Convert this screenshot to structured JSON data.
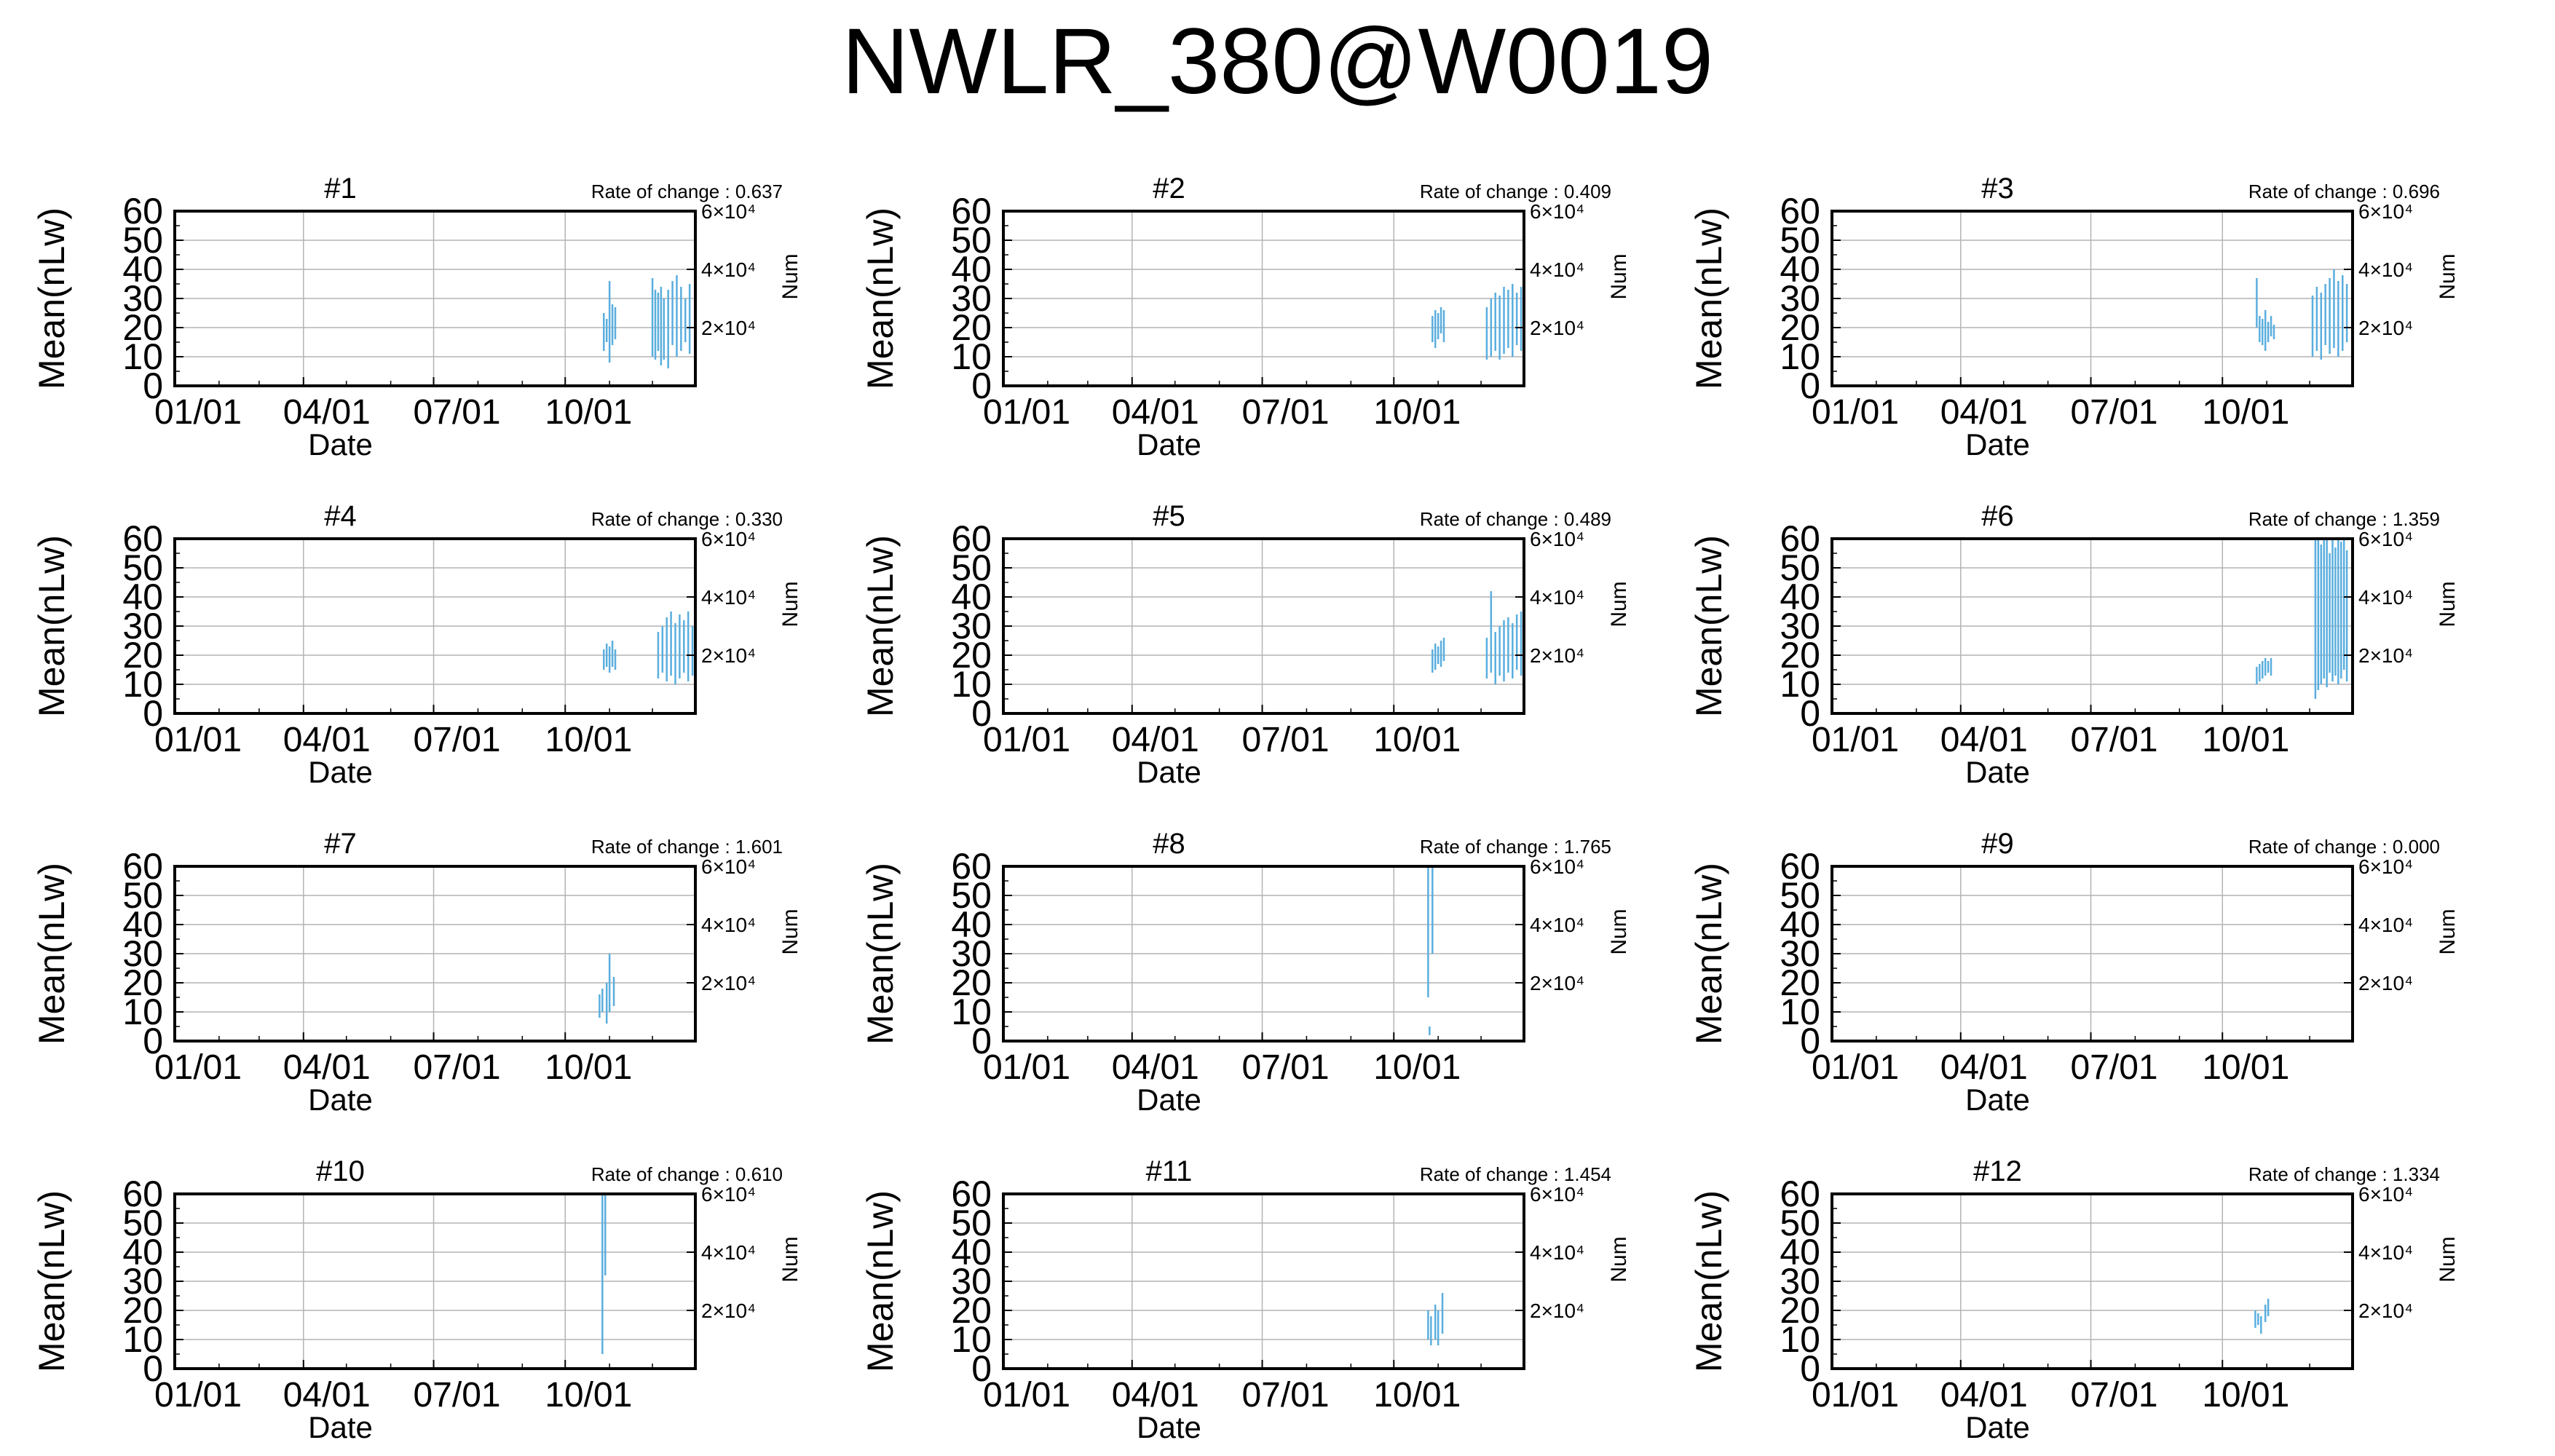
{
  "title": "NWLR_380@W0019",
  "colors": {
    "series": "#5aaede",
    "axis": "#000000",
    "grid": "#b4b4b4",
    "background": "#ffffff"
  },
  "chart_data": [
    {
      "type": "line",
      "title": "#1",
      "annotation": "Rate of change : 0.637",
      "xlabel": "Date",
      "ylabel": "Mean(nLw)",
      "y2label": "Num",
      "xticks": [
        "01/01",
        "04/01",
        "07/01",
        "10/01"
      ],
      "yticks": [
        "0",
        "10",
        "20",
        "30",
        "40",
        "50",
        "60"
      ],
      "y2ticks": [
        "2×10⁴",
        "4×10⁴",
        "6×10⁴"
      ],
      "xlim": [
        "01/01",
        "12/31"
      ],
      "ylim": [
        0,
        60
      ],
      "y2lim": [
        0,
        60000
      ],
      "grid": true,
      "series": [
        {
          "mean_range": [
            [
              "10/28",
              12,
              25
            ],
            [
              "10/30",
              15,
              23
            ],
            [
              "11/01",
              8,
              36
            ],
            [
              "11/03",
              14,
              28
            ],
            [
              "11/05",
              16,
              27
            ],
            [
              "12/01",
              10,
              37
            ],
            [
              "12/03",
              9,
              33
            ],
            [
              "12/05",
              12,
              32
            ],
            [
              "12/07",
              7,
              34
            ],
            [
              "12/09",
              9,
              30
            ],
            [
              "12/12",
              6,
              33
            ],
            [
              "12/15",
              14,
              36
            ],
            [
              "12/18",
              10,
              38
            ],
            [
              "12/21",
              12,
              34
            ],
            [
              "12/24",
              15,
              30
            ],
            [
              "12/27",
              11,
              35
            ]
          ]
        }
      ]
    },
    {
      "type": "line",
      "title": "#2",
      "annotation": "Rate of change : 0.409",
      "xlabel": "Date",
      "ylabel": "Mean(nLw)",
      "y2label": "Num",
      "xticks": [
        "01/01",
        "04/01",
        "07/01",
        "10/01"
      ],
      "yticks": [
        "0",
        "10",
        "20",
        "30",
        "40",
        "50",
        "60"
      ],
      "y2ticks": [
        "2×10⁴",
        "4×10⁴",
        "6×10⁴"
      ],
      "xlim": [
        "01/01",
        "12/31"
      ],
      "ylim": [
        0,
        60
      ],
      "y2lim": [
        0,
        60000
      ],
      "grid": true,
      "series": [
        {
          "mean_range": [
            [
              "10/28",
              15,
              24
            ],
            [
              "10/30",
              13,
              26
            ],
            [
              "11/01",
              16,
              25
            ],
            [
              "11/03",
              18,
              27
            ],
            [
              "11/05",
              15,
              26
            ],
            [
              "12/05",
              9,
              27
            ],
            [
              "12/08",
              10,
              30
            ],
            [
              "12/11",
              12,
              32
            ],
            [
              "12/14",
              9,
              31
            ],
            [
              "12/17",
              11,
              34
            ],
            [
              "12/20",
              13,
              33
            ],
            [
              "12/23",
              10,
              35
            ],
            [
              "12/26",
              14,
              32
            ],
            [
              "12/29",
              12,
              34
            ]
          ]
        }
      ]
    },
    {
      "type": "line",
      "title": "#3",
      "annotation": "Rate of change : 0.696",
      "xlabel": "Date",
      "ylabel": "Mean(nLw)",
      "y2label": "Num",
      "xticks": [
        "01/01",
        "04/01",
        "07/01",
        "10/01"
      ],
      "yticks": [
        "0",
        "10",
        "20",
        "30",
        "40",
        "50",
        "60"
      ],
      "y2ticks": [
        "2×10⁴",
        "4×10⁴",
        "6×10⁴"
      ],
      "xlim": [
        "01/01",
        "12/31"
      ],
      "ylim": [
        0,
        60
      ],
      "y2lim": [
        0,
        60000
      ],
      "grid": true,
      "series": [
        {
          "mean_range": [
            [
              "10/25",
              20,
              37
            ],
            [
              "10/27",
              15,
              24
            ],
            [
              "10/29",
              14,
              23
            ],
            [
              "10/31",
              12,
              26
            ],
            [
              "11/02",
              15,
              22
            ],
            [
              "11/04",
              17,
              24
            ],
            [
              "11/06",
              16,
              21
            ],
            [
              "12/03",
              10,
              31
            ],
            [
              "12/06",
              12,
              34
            ],
            [
              "12/09",
              9,
              32
            ],
            [
              "12/12",
              14,
              35
            ],
            [
              "12/15",
              11,
              37
            ],
            [
              "12/18",
              13,
              40
            ],
            [
              "12/21",
              10,
              36
            ],
            [
              "12/24",
              12,
              38
            ],
            [
              "12/27",
              15,
              35
            ]
          ]
        }
      ]
    },
    {
      "type": "line",
      "title": "#4",
      "annotation": "Rate of change : 0.330",
      "xlabel": "Date",
      "ylabel": "Mean(nLw)",
      "y2label": "Num",
      "xticks": [
        "01/01",
        "04/01",
        "07/01",
        "10/01"
      ],
      "yticks": [
        "0",
        "10",
        "20",
        "30",
        "40",
        "50",
        "60"
      ],
      "y2ticks": [
        "2×10⁴",
        "4×10⁴",
        "6×10⁴"
      ],
      "xlim": [
        "01/01",
        "12/31"
      ],
      "ylim": [
        0,
        60
      ],
      "y2lim": [
        0,
        60000
      ],
      "grid": true,
      "series": [
        {
          "mean_range": [
            [
              "10/28",
              15,
              22
            ],
            [
              "10/30",
              16,
              24
            ],
            [
              "11/01",
              14,
              23
            ],
            [
              "11/03",
              16,
              25
            ],
            [
              "11/05",
              15,
              22
            ],
            [
              "12/05",
              12,
              28
            ],
            [
              "12/08",
              14,
              30
            ],
            [
              "12/11",
              11,
              33
            ],
            [
              "12/14",
              13,
              35
            ],
            [
              "12/17",
              10,
              31
            ],
            [
              "12/20",
              12,
              34
            ],
            [
              "12/23",
              14,
              32
            ],
            [
              "12/26",
              11,
              35
            ],
            [
              "12/29",
              13,
              30
            ]
          ]
        }
      ]
    },
    {
      "type": "line",
      "title": "#5",
      "annotation": "Rate of change : 0.489",
      "xlabel": "Date",
      "ylabel": "Mean(nLw)",
      "y2label": "Num",
      "xticks": [
        "01/01",
        "04/01",
        "07/01",
        "10/01"
      ],
      "yticks": [
        "0",
        "10",
        "20",
        "30",
        "40",
        "50",
        "60"
      ],
      "y2ticks": [
        "2×10⁴",
        "4×10⁴",
        "6×10⁴"
      ],
      "xlim": [
        "01/01",
        "12/31"
      ],
      "ylim": [
        0,
        60
      ],
      "y2lim": [
        0,
        60000
      ],
      "grid": true,
      "series": [
        {
          "mean_range": [
            [
              "10/28",
              14,
              22
            ],
            [
              "10/30",
              15,
              24
            ],
            [
              "11/01",
              17,
              23
            ],
            [
              "11/03",
              16,
              25
            ],
            [
              "11/05",
              18,
              26
            ],
            [
              "12/05",
              12,
              26
            ],
            [
              "12/08",
              14,
              42
            ],
            [
              "12/11",
              10,
              28
            ],
            [
              "12/14",
              13,
              30
            ],
            [
              "12/17",
              11,
              32
            ],
            [
              "12/20",
              14,
              33
            ],
            [
              "12/23",
              12,
              31
            ],
            [
              "12/26",
              15,
              34
            ],
            [
              "12/29",
              13,
              35
            ]
          ]
        }
      ]
    },
    {
      "type": "line",
      "title": "#6",
      "annotation": "Rate of change : 1.359",
      "xlabel": "Date",
      "ylabel": "Mean(nLw)",
      "y2label": "Num",
      "xticks": [
        "01/01",
        "04/01",
        "07/01",
        "10/01"
      ],
      "yticks": [
        "0",
        "10",
        "20",
        "30",
        "40",
        "50",
        "60"
      ],
      "y2ticks": [
        "2×10⁴",
        "4×10⁴",
        "6×10⁴"
      ],
      "xlim": [
        "01/01",
        "12/31"
      ],
      "ylim": [
        0,
        60
      ],
      "y2lim": [
        0,
        60000
      ],
      "grid": true,
      "series": [
        {
          "mean_range": [
            [
              "10/25",
              10,
              16
            ],
            [
              "10/27",
              11,
              17
            ],
            [
              "10/29",
              12,
              18
            ],
            [
              "10/31",
              13,
              19
            ],
            [
              "11/02",
              14,
              18
            ],
            [
              "11/04",
              13,
              19
            ],
            [
              "12/05",
              5,
              60
            ],
            [
              "12/07",
              8,
              60
            ],
            [
              "12/09",
              10,
              58
            ],
            [
              "12/11",
              12,
              60
            ],
            [
              "12/13",
              9,
              60
            ],
            [
              "12/15",
              14,
              55
            ],
            [
              "12/17",
              11,
              60
            ],
            [
              "12/19",
              13,
              57
            ],
            [
              "12/21",
              10,
              60
            ],
            [
              "12/23",
              12,
              59
            ],
            [
              "12/25",
              15,
              60
            ],
            [
              "12/27",
              11,
              56
            ]
          ]
        }
      ]
    },
    {
      "type": "line",
      "title": "#7",
      "annotation": "Rate of change : 1.601",
      "xlabel": "Date",
      "ylabel": "Mean(nLw)",
      "y2label": "Num",
      "xticks": [
        "01/01",
        "04/01",
        "07/01",
        "10/01"
      ],
      "yticks": [
        "0",
        "10",
        "20",
        "30",
        "40",
        "50",
        "60"
      ],
      "y2ticks": [
        "2×10⁴",
        "4×10⁴",
        "6×10⁴"
      ],
      "xlim": [
        "01/01",
        "12/31"
      ],
      "ylim": [
        0,
        60
      ],
      "y2lim": [
        0,
        60000
      ],
      "grid": true,
      "series": [
        {
          "mean_range": [
            [
              "10/25",
              8,
              16
            ],
            [
              "10/27",
              10,
              18
            ],
            [
              "10/30",
              6,
              20
            ],
            [
              "11/01",
              10,
              30
            ],
            [
              "11/04",
              12,
              22
            ]
          ]
        }
      ]
    },
    {
      "type": "line",
      "title": "#8",
      "annotation": "Rate of change : 1.765",
      "xlabel": "Date",
      "ylabel": "Mean(nLw)",
      "y2label": "Num",
      "xticks": [
        "01/01",
        "04/01",
        "07/01",
        "10/01"
      ],
      "yticks": [
        "0",
        "10",
        "20",
        "30",
        "40",
        "50",
        "60"
      ],
      "y2ticks": [
        "2×10⁴",
        "4×10⁴",
        "6×10⁴"
      ],
      "xlim": [
        "01/01",
        "12/31"
      ],
      "ylim": [
        0,
        60
      ],
      "y2lim": [
        0,
        60000
      ],
      "grid": true,
      "series": [
        {
          "mean_range": [
            [
              "10/25",
              15,
              60
            ],
            [
              "10/28",
              30,
              60
            ],
            [
              "10/26",
              2,
              5
            ]
          ]
        }
      ]
    },
    {
      "type": "line",
      "title": "#9",
      "annotation": "Rate of change : 0.000",
      "xlabel": "Date",
      "ylabel": "Mean(nLw)",
      "y2label": "Num",
      "xticks": [
        "01/01",
        "04/01",
        "07/01",
        "10/01"
      ],
      "yticks": [
        "0",
        "10",
        "20",
        "30",
        "40",
        "50",
        "60"
      ],
      "y2ticks": [
        "2×10⁴",
        "4×10⁴",
        "6×10⁴"
      ],
      "xlim": [
        "01/01",
        "12/31"
      ],
      "ylim": [
        0,
        60
      ],
      "y2lim": [
        0,
        60000
      ],
      "grid": true,
      "series": [
        {
          "mean_range": []
        }
      ]
    },
    {
      "type": "line",
      "title": "#10",
      "annotation": "Rate of change : 0.610",
      "xlabel": "Date",
      "ylabel": "Mean(nLw)",
      "y2label": "Num",
      "xticks": [
        "01/01",
        "04/01",
        "07/01",
        "10/01"
      ],
      "yticks": [
        "0",
        "10",
        "20",
        "30",
        "40",
        "50",
        "60"
      ],
      "y2ticks": [
        "2×10⁴",
        "4×10⁴",
        "6×10⁴"
      ],
      "xlim": [
        "01/01",
        "12/31"
      ],
      "ylim": [
        0,
        60
      ],
      "y2lim": [
        0,
        60000
      ],
      "grid": true,
      "series": [
        {
          "mean_range": [
            [
              "10/27",
              5,
              60
            ],
            [
              "10/29",
              32,
              60
            ]
          ]
        }
      ]
    },
    {
      "type": "line",
      "title": "#11",
      "annotation": "Rate of change : 1.454",
      "xlabel": "Date",
      "ylabel": "Mean(nLw)",
      "y2label": "Num",
      "xticks": [
        "01/01",
        "04/01",
        "07/01",
        "10/01"
      ],
      "yticks": [
        "0",
        "10",
        "20",
        "30",
        "40",
        "50",
        "60"
      ],
      "y2ticks": [
        "2×10⁴",
        "4×10⁴",
        "6×10⁴"
      ],
      "xlim": [
        "01/01",
        "12/31"
      ],
      "ylim": [
        0,
        60
      ],
      "y2lim": [
        0,
        60000
      ],
      "grid": true,
      "series": [
        {
          "mean_range": [
            [
              "10/25",
              10,
              20
            ],
            [
              "10/27",
              8,
              18
            ],
            [
              "10/30",
              10,
              22
            ],
            [
              "11/01",
              8,
              20
            ],
            [
              "11/04",
              12,
              26
            ]
          ]
        }
      ]
    },
    {
      "type": "line",
      "title": "#12",
      "annotation": "Rate of change : 1.334",
      "xlabel": "Date",
      "ylabel": "Mean(nLw)",
      "y2label": "Num",
      "xticks": [
        "01/01",
        "04/01",
        "07/01",
        "10/01"
      ],
      "yticks": [
        "0",
        "10",
        "20",
        "30",
        "40",
        "50",
        "60"
      ],
      "y2ticks": [
        "2×10⁴",
        "4×10⁴",
        "6×10⁴"
      ],
      "xlim": [
        "01/01",
        "12/31"
      ],
      "ylim": [
        0,
        60
      ],
      "y2lim": [
        0,
        60000
      ],
      "grid": true,
      "series": [
        {
          "mean_range": [
            [
              "10/24",
              14,
              20
            ],
            [
              "10/26",
              15,
              19
            ],
            [
              "10/28",
              12,
              18
            ],
            [
              "10/31",
              16,
              22
            ],
            [
              "11/02",
              18,
              24
            ]
          ]
        }
      ]
    }
  ]
}
